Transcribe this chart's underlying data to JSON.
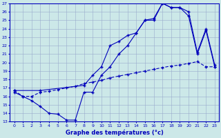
{
  "line1_x": [
    0,
    1,
    2,
    3,
    4,
    5,
    6,
    7,
    8,
    9,
    10,
    11,
    12,
    13,
    14,
    15,
    16,
    17,
    18,
    19,
    20,
    21,
    22,
    23
  ],
  "line1_y": [
    16.5,
    16.0,
    15.5,
    14.8,
    14.0,
    13.9,
    13.2,
    13.2,
    16.5,
    16.5,
    18.5,
    19.5,
    21.0,
    22.0,
    23.5,
    25.0,
    25.0,
    27.0,
    26.5,
    26.5,
    25.5,
    21.0,
    23.8,
    19.5
  ],
  "line2_x": [
    0,
    1,
    2,
    3,
    4,
    5,
    6,
    7,
    8,
    9,
    10,
    11,
    12,
    13,
    14,
    15,
    16,
    17,
    18,
    19,
    20,
    21,
    22,
    23
  ],
  "line2_y": [
    16.7,
    16.0,
    16.0,
    16.5,
    16.6,
    16.8,
    17.0,
    17.2,
    17.5,
    17.7,
    17.9,
    18.2,
    18.4,
    18.6,
    18.8,
    19.0,
    19.2,
    19.4,
    19.6,
    19.7,
    19.9,
    20.1,
    19.5,
    19.5
  ],
  "line3_x": [
    0,
    3,
    8,
    9,
    10,
    11,
    12,
    13,
    14,
    15,
    16,
    17,
    18,
    19,
    20,
    21,
    22,
    23
  ],
  "line3_y": [
    16.7,
    16.7,
    17.3,
    18.5,
    19.5,
    22.0,
    22.5,
    23.2,
    23.5,
    25.0,
    25.2,
    27.0,
    26.5,
    26.5,
    26.0,
    21.2,
    24.0,
    19.7
  ],
  "line_color": "#0000bb",
  "marker": "+",
  "bg_color": "#cce8e8",
  "grid_color": "#99aacc",
  "xlabel": "Graphe des températures (°c)",
  "ylim": [
    13,
    27
  ],
  "xlim": [
    -0.5,
    23.5
  ],
  "yticks": [
    13,
    14,
    15,
    16,
    17,
    18,
    19,
    20,
    21,
    22,
    23,
    24,
    25,
    26,
    27
  ],
  "xticks": [
    0,
    1,
    2,
    3,
    4,
    5,
    6,
    7,
    8,
    9,
    10,
    11,
    12,
    13,
    14,
    15,
    16,
    17,
    18,
    19,
    20,
    21,
    22,
    23
  ]
}
